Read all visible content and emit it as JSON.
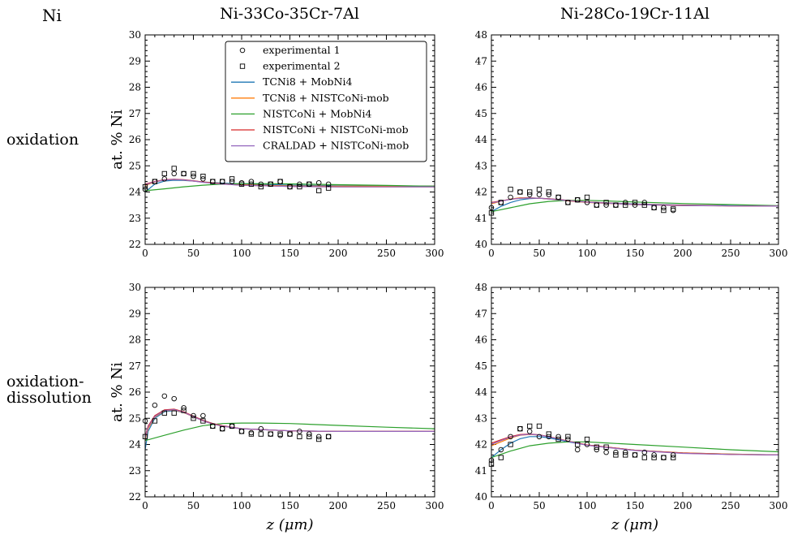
{
  "figure": {
    "element_label": "Ni",
    "column_titles": [
      "Ni-33Co-35Cr-7Al",
      "Ni-28Co-19Cr-11Al"
    ],
    "row_labels": [
      [
        "oxidation"
      ],
      [
        "oxidation-",
        "dissolution"
      ]
    ],
    "ylabel": "at. % Ni",
    "xlabel": "z (μm)",
    "xticks": [
      "0",
      "50",
      "100",
      "150",
      "200",
      "250",
      "300"
    ]
  },
  "legend": {
    "placement": "top-left panel, upper middle",
    "entries": [
      {
        "label": "experimental 1",
        "marker": "circle"
      },
      {
        "label": "experimental 2",
        "marker": "square"
      },
      {
        "label": "TCNi8 + MobNi4",
        "color": "#1f77b4"
      },
      {
        "label": "TCNi8 + NISTCoNi-mob",
        "color": "#ff7f0e"
      },
      {
        "label": "NISTCoNi + MobNi4",
        "color": "#2ca02c"
      },
      {
        "label": "NISTCoNi + NISTCoNi-mob",
        "color": "#d62728"
      },
      {
        "label": "CRALDAD + NISTCoNi-mob",
        "color": "#9467bd"
      }
    ]
  },
  "chart_data": [
    {
      "type": "line",
      "row": "oxidation",
      "column": "Ni-33Co-35Cr-7Al",
      "xlim": [
        0,
        300
      ],
      "ylim": [
        22,
        30
      ],
      "yticks": [
        "22",
        "23",
        "24",
        "25",
        "26",
        "27",
        "28",
        "29",
        "30"
      ],
      "experimental_1": {
        "x": [
          0,
          10,
          20,
          30,
          40,
          50,
          60,
          70,
          80,
          90,
          100,
          110,
          120,
          130,
          140,
          150,
          160,
          170,
          180,
          190
        ],
        "y": [
          24.1,
          24.4,
          24.5,
          24.7,
          24.7,
          24.6,
          24.5,
          24.4,
          24.4,
          24.4,
          24.35,
          24.4,
          24.3,
          24.3,
          24.4,
          24.2,
          24.3,
          24.3,
          24.35,
          24.3
        ]
      },
      "experimental_2": {
        "x": [
          0,
          10,
          20,
          30,
          40,
          50,
          60,
          70,
          80,
          90,
          100,
          110,
          120,
          130,
          140,
          150,
          160,
          170,
          180,
          190
        ],
        "y": [
          24.2,
          24.4,
          24.7,
          24.9,
          24.7,
          24.7,
          24.6,
          24.4,
          24.4,
          24.5,
          24.3,
          24.3,
          24.2,
          24.3,
          24.4,
          24.2,
          24.2,
          24.3,
          24.05,
          24.15
        ]
      },
      "series": [
        {
          "name": "TCNi8 + MobNi4",
          "x": [
            0,
            10,
            20,
            30,
            40,
            50,
            60,
            80,
            100,
            150,
            200,
            250,
            300
          ],
          "y": [
            24.0,
            24.3,
            24.42,
            24.45,
            24.44,
            24.42,
            24.38,
            24.34,
            24.31,
            24.26,
            24.24,
            24.23,
            24.23
          ]
        },
        {
          "name": "TCNi8 + NISTCoNi-mob",
          "x": [
            0,
            10,
            20,
            30,
            40,
            50,
            60,
            80,
            100,
            150,
            200,
            250,
            300
          ],
          "y": [
            24.25,
            24.38,
            24.46,
            24.48,
            24.46,
            24.42,
            24.38,
            24.32,
            24.28,
            24.23,
            24.22,
            24.22,
            24.22
          ]
        },
        {
          "name": "NISTCoNi + MobNi4",
          "x": [
            0,
            20,
            40,
            60,
            80,
            100,
            120,
            150,
            200,
            250,
            300
          ],
          "y": [
            24.05,
            24.12,
            24.2,
            24.26,
            24.3,
            24.32,
            24.32,
            24.31,
            24.28,
            24.25,
            24.22
          ]
        },
        {
          "name": "NISTCoNi + NISTCoNi-mob",
          "x": [
            0,
            10,
            20,
            30,
            40,
            50,
            60,
            80,
            100,
            150,
            200,
            250,
            300
          ],
          "y": [
            24.3,
            24.4,
            24.47,
            24.49,
            24.47,
            24.43,
            24.38,
            24.31,
            24.26,
            24.21,
            24.2,
            24.2,
            24.2
          ]
        },
        {
          "name": "CRALDAD + NISTCoNi-mob",
          "x": [
            0,
            10,
            20,
            30,
            40,
            50,
            60,
            80,
            100,
            150,
            200,
            250,
            300
          ],
          "y": [
            24.28,
            24.39,
            24.46,
            24.48,
            24.46,
            24.42,
            24.37,
            24.3,
            24.26,
            24.21,
            24.2,
            24.2,
            24.2
          ]
        }
      ]
    },
    {
      "type": "line",
      "row": "oxidation",
      "column": "Ni-28Co-19Cr-11Al",
      "xlim": [
        0,
        300
      ],
      "ylim": [
        40,
        48
      ],
      "yticks": [
        "40",
        "41",
        "42",
        "43",
        "44",
        "45",
        "46",
        "47",
        "48"
      ],
      "experimental_1": {
        "x": [
          0,
          10,
          20,
          30,
          40,
          50,
          60,
          70,
          80,
          90,
          100,
          110,
          120,
          130,
          140,
          150,
          160,
          170,
          180,
          190
        ],
        "y": [
          41.4,
          41.6,
          41.8,
          42.0,
          41.9,
          41.9,
          41.9,
          41.8,
          41.6,
          41.7,
          41.6,
          41.5,
          41.5,
          41.5,
          41.6,
          41.5,
          41.6,
          41.4,
          41.4,
          41.3
        ]
      },
      "experimental_2": {
        "x": [
          0,
          10,
          20,
          30,
          40,
          50,
          60,
          70,
          80,
          90,
          100,
          110,
          120,
          130,
          140,
          150,
          160,
          170,
          180,
          190
        ],
        "y": [
          41.2,
          41.6,
          42.1,
          42.0,
          42.0,
          42.1,
          42.0,
          41.8,
          41.6,
          41.7,
          41.8,
          41.5,
          41.6,
          41.5,
          41.5,
          41.6,
          41.5,
          41.4,
          41.3,
          41.35
        ]
      },
      "series": [
        {
          "name": "TCNi8 + MobNi4",
          "x": [
            0,
            10,
            20,
            30,
            40,
            50,
            60,
            70,
            80,
            100,
            150,
            200,
            250,
            300
          ],
          "y": [
            41.25,
            41.45,
            41.6,
            41.7,
            41.75,
            41.76,
            41.74,
            41.71,
            41.68,
            41.62,
            41.54,
            41.5,
            41.48,
            41.47
          ]
        },
        {
          "name": "TCNi8 + NISTCoNi-mob",
          "x": [
            0,
            10,
            20,
            30,
            40,
            50,
            60,
            70,
            80,
            100,
            150,
            200,
            250,
            300
          ],
          "y": [
            41.55,
            41.65,
            41.73,
            41.78,
            41.78,
            41.76,
            41.73,
            41.7,
            41.66,
            41.6,
            41.52,
            41.48,
            41.47,
            41.47
          ]
        },
        {
          "name": "NISTCoNi + MobNi4",
          "x": [
            0,
            20,
            40,
            60,
            80,
            100,
            120,
            150,
            200,
            250,
            300
          ],
          "y": [
            41.25,
            41.4,
            41.55,
            41.64,
            41.68,
            41.68,
            41.66,
            41.62,
            41.56,
            41.52,
            41.48
          ]
        },
        {
          "name": "NISTCoNi + NISTCoNi-mob",
          "x": [
            0,
            10,
            20,
            30,
            40,
            50,
            60,
            70,
            80,
            100,
            150,
            200,
            250,
            300
          ],
          "y": [
            41.6,
            41.66,
            41.72,
            41.76,
            41.77,
            41.76,
            41.74,
            41.71,
            41.68,
            41.62,
            41.53,
            41.49,
            41.47,
            41.46
          ]
        },
        {
          "name": "CRALDAD + NISTCoNi-mob",
          "x": [
            0,
            10,
            20,
            30,
            40,
            50,
            60,
            70,
            80,
            100,
            150,
            200,
            250,
            300
          ],
          "y": [
            41.58,
            41.65,
            41.72,
            41.76,
            41.77,
            41.76,
            41.73,
            41.7,
            41.67,
            41.61,
            41.52,
            41.48,
            41.47,
            41.46
          ]
        }
      ]
    },
    {
      "type": "line",
      "row": "oxidation-dissolution",
      "column": "Ni-33Co-35Cr-7Al",
      "xlim": [
        0,
        300
      ],
      "ylim": [
        22,
        30
      ],
      "yticks": [
        "22",
        "23",
        "24",
        "25",
        "26",
        "27",
        "28",
        "29",
        "30"
      ],
      "experimental_1": {
        "x": [
          0,
          10,
          20,
          30,
          40,
          50,
          60,
          70,
          80,
          90,
          100,
          110,
          120,
          130,
          140,
          150,
          160,
          170,
          180,
          190
        ],
        "y": [
          24.9,
          25.5,
          25.85,
          25.75,
          25.4,
          25.1,
          25.1,
          24.7,
          24.6,
          24.7,
          24.5,
          24.45,
          24.6,
          24.4,
          24.35,
          24.4,
          24.5,
          24.4,
          24.3,
          24.3
        ]
      },
      "experimental_2": {
        "x": [
          0,
          10,
          20,
          30,
          40,
          50,
          60,
          70,
          80,
          90,
          100,
          110,
          120,
          130,
          140,
          150,
          160,
          170,
          180,
          190
        ],
        "y": [
          24.3,
          24.9,
          25.2,
          25.2,
          25.3,
          25.0,
          24.9,
          24.7,
          24.6,
          24.7,
          24.5,
          24.4,
          24.4,
          24.4,
          24.4,
          24.4,
          24.3,
          24.3,
          24.2,
          24.3
        ]
      },
      "series": [
        {
          "name": "TCNi8 + MobNi4",
          "x": [
            0,
            3,
            10,
            20,
            30,
            40,
            50,
            60,
            70,
            80,
            100,
            150,
            200,
            250,
            300
          ],
          "y": [
            23.8,
            24.5,
            25.0,
            25.25,
            25.3,
            25.22,
            25.08,
            24.92,
            24.8,
            24.7,
            24.6,
            24.52,
            24.5,
            24.5,
            24.5
          ]
        },
        {
          "name": "TCNi8 + NISTCoNi-mob",
          "x": [
            0,
            3,
            10,
            20,
            30,
            40,
            50,
            60,
            70,
            80,
            100,
            150,
            200,
            250,
            300
          ],
          "y": [
            24.2,
            24.6,
            25.05,
            25.28,
            25.32,
            25.22,
            25.06,
            24.9,
            24.78,
            24.7,
            24.6,
            24.52,
            24.5,
            24.5,
            24.5
          ]
        },
        {
          "name": "NISTCoNi + MobNi4",
          "x": [
            0,
            20,
            40,
            60,
            80,
            100,
            120,
            150,
            200,
            250,
            300
          ],
          "y": [
            24.15,
            24.35,
            24.55,
            24.72,
            24.8,
            24.82,
            24.82,
            24.8,
            24.73,
            24.66,
            24.6
          ]
        },
        {
          "name": "NISTCoNi + NISTCoNi-mob",
          "x": [
            0,
            3,
            10,
            20,
            30,
            40,
            50,
            60,
            70,
            80,
            100,
            150,
            200,
            250,
            300
          ],
          "y": [
            24.3,
            24.7,
            25.1,
            25.32,
            25.35,
            25.25,
            25.08,
            24.92,
            24.8,
            24.72,
            24.6,
            24.52,
            24.5,
            24.5,
            24.5
          ]
        },
        {
          "name": "CRALDAD + NISTCoNi-mob",
          "x": [
            0,
            3,
            10,
            20,
            30,
            40,
            50,
            60,
            70,
            80,
            100,
            150,
            200,
            250,
            300
          ],
          "y": [
            24.25,
            24.66,
            25.07,
            25.3,
            25.33,
            25.23,
            25.06,
            24.9,
            24.78,
            24.7,
            24.6,
            24.52,
            24.5,
            24.5,
            24.5
          ]
        }
      ]
    },
    {
      "type": "line",
      "row": "oxidation-dissolution",
      "column": "Ni-28Co-19Cr-11Al",
      "xlim": [
        0,
        300
      ],
      "ylim": [
        40,
        48
      ],
      "yticks": [
        "40",
        "41",
        "42",
        "43",
        "44",
        "45",
        "46",
        "47",
        "48"
      ],
      "experimental_1": {
        "x": [
          0,
          10,
          20,
          30,
          40,
          50,
          60,
          70,
          80,
          90,
          100,
          110,
          120,
          130,
          140,
          150,
          160,
          170,
          180,
          190
        ],
        "y": [
          41.4,
          41.8,
          42.3,
          42.6,
          42.5,
          42.3,
          42.3,
          42.3,
          42.2,
          41.8,
          42.0,
          41.8,
          41.7,
          41.7,
          41.7,
          41.6,
          41.7,
          41.6,
          41.5,
          41.6
        ]
      },
      "experimental_2": {
        "x": [
          0,
          10,
          20,
          30,
          40,
          50,
          60,
          70,
          80,
          90,
          100,
          110,
          120,
          130,
          140,
          150,
          160,
          170,
          180,
          190
        ],
        "y": [
          41.25,
          41.5,
          42.0,
          42.6,
          42.7,
          42.7,
          42.4,
          42.2,
          42.3,
          42.0,
          42.2,
          41.9,
          41.9,
          41.6,
          41.6,
          41.6,
          41.5,
          41.5,
          41.5,
          41.5
        ]
      },
      "series": [
        {
          "name": "TCNi8 + MobNi4",
          "x": [
            0,
            10,
            20,
            30,
            40,
            50,
            60,
            70,
            80,
            100,
            150,
            200,
            250,
            300
          ],
          "y": [
            41.5,
            41.8,
            42.05,
            42.22,
            42.3,
            42.3,
            42.25,
            42.18,
            42.1,
            41.98,
            41.78,
            41.68,
            41.63,
            41.6
          ]
        },
        {
          "name": "TCNi8 + NISTCoNi-mob",
          "x": [
            0,
            10,
            20,
            30,
            40,
            50,
            60,
            70,
            80,
            100,
            150,
            200,
            250,
            300
          ],
          "y": [
            41.95,
            42.1,
            42.25,
            42.35,
            42.38,
            42.36,
            42.3,
            42.22,
            42.13,
            41.98,
            41.78,
            41.68,
            41.63,
            41.6
          ]
        },
        {
          "name": "NISTCoNi + MobNi4",
          "x": [
            0,
            20,
            40,
            60,
            80,
            100,
            120,
            150,
            200,
            250,
            300
          ],
          "y": [
            41.5,
            41.75,
            41.95,
            42.05,
            42.1,
            42.1,
            42.06,
            42.0,
            41.9,
            41.8,
            41.72
          ]
        },
        {
          "name": "NISTCoNi + NISTCoNi-mob",
          "x": [
            0,
            10,
            20,
            30,
            40,
            50,
            60,
            70,
            80,
            100,
            150,
            200,
            250,
            300
          ],
          "y": [
            42.05,
            42.18,
            42.3,
            42.38,
            42.4,
            42.37,
            42.3,
            42.22,
            42.13,
            41.98,
            41.78,
            41.67,
            41.62,
            41.6
          ]
        },
        {
          "name": "CRALDAD + NISTCoNi-mob",
          "x": [
            0,
            10,
            20,
            30,
            40,
            50,
            60,
            70,
            80,
            100,
            150,
            200,
            250,
            300
          ],
          "y": [
            42.0,
            42.15,
            42.28,
            42.36,
            42.39,
            42.36,
            42.29,
            42.21,
            42.12,
            41.97,
            41.77,
            41.66,
            41.62,
            41.6
          ]
        }
      ]
    }
  ]
}
